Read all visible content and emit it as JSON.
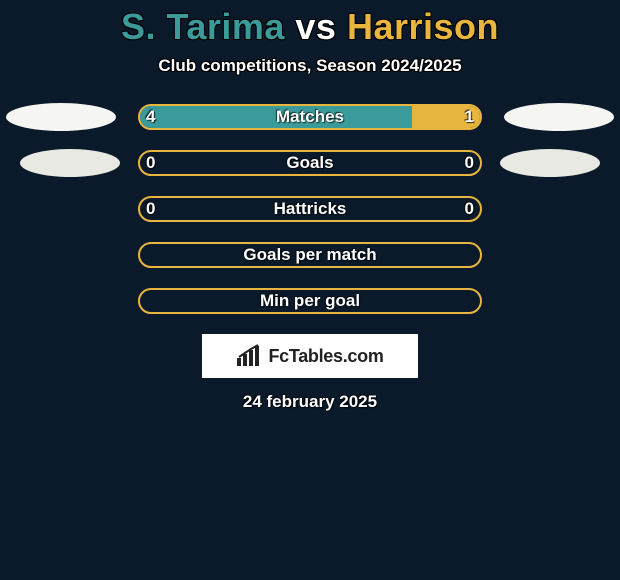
{
  "colors": {
    "background": "#0a1a2a",
    "bar_border": "#e8b63e",
    "left_fill": "#3a9b9a",
    "right_fill": "#e8b63e",
    "ellipse_a": "#f5f5f2",
    "ellipse_b": "#e9e9e4",
    "logo_bg": "#ffffff",
    "text": "#ffffff"
  },
  "title": {
    "left_name": "S. Tarima",
    "vs": " vs ",
    "right_name": "Harrison",
    "left_color": "#3a9b9a",
    "right_color": "#e8b63e",
    "fontsize": 36
  },
  "subtitle": "Club competitions, Season 2024/2025",
  "rows": [
    {
      "label": "Matches",
      "left": "4",
      "right": "1",
      "left_pct": 80,
      "right_pct": 20,
      "show_ellipses": true,
      "ellipse_color": "#f5f5f2"
    },
    {
      "label": "Goals",
      "left": "0",
      "right": "0",
      "left_pct": 0,
      "right_pct": 0,
      "show_ellipses": true,
      "ellipse_color": "#e9e9e4"
    },
    {
      "label": "Hattricks",
      "left": "0",
      "right": "0",
      "left_pct": 0,
      "right_pct": 0,
      "show_ellipses": false
    },
    {
      "label": "Goals per match",
      "left": "",
      "right": "",
      "left_pct": 0,
      "right_pct": 0,
      "show_ellipses": false
    },
    {
      "label": "Min per goal",
      "left": "",
      "right": "",
      "left_pct": 0,
      "right_pct": 0,
      "show_ellipses": false
    }
  ],
  "logo_text": "FcTables.com",
  "date": "24 february 2025"
}
